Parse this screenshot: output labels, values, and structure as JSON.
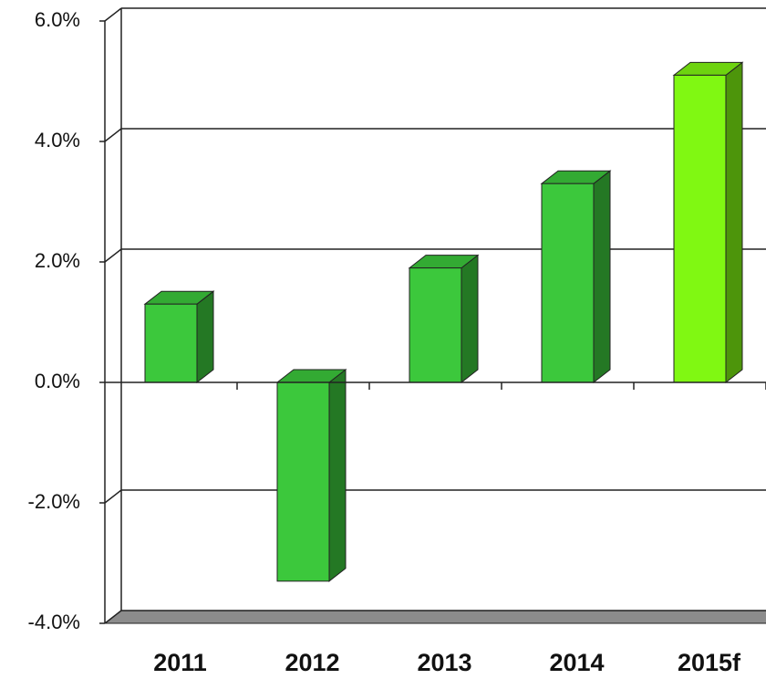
{
  "chart_data": {
    "type": "bar3d",
    "categories": [
      "2011",
      "2012",
      "2013",
      "2014",
      "2015f"
    ],
    "values": [
      1.3,
      -3.3,
      1.9,
      3.3,
      5.1
    ],
    "colors": [
      "#3cc83c",
      "#3cc83c",
      "#3cc83c",
      "#3cc83c",
      "#80f812"
    ],
    "ylim": [
      -4,
      6
    ],
    "yticks": [
      {
        "value": -4,
        "label": "-4.0%"
      },
      {
        "value": -2,
        "label": "-2.0%"
      },
      {
        "value": 0,
        "label": "0.0%"
      },
      {
        "value": 2,
        "label": "2.0%"
      },
      {
        "value": 4,
        "label": "4.0%"
      },
      {
        "value": 6,
        "label": "6.0%"
      }
    ],
    "grid": true
  }
}
